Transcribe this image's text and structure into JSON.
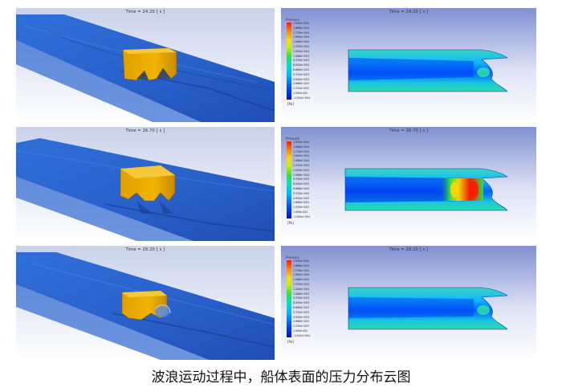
{
  "panels": [
    {
      "row": "1",
      "time_label": "Time = 24.20 [ s ]"
    },
    {
      "row": "2",
      "time_label": "Time = 26.70 [ s ]"
    },
    {
      "row": "3",
      "time_label": "Time = 28.20 [ s ]"
    }
  ],
  "contour": {
    "right_time_labels": [
      "Time = 24.20 [ s ]",
      "Time = 26.70 [ s ]",
      "Time = 28.20 [ s ]"
    ],
    "legend_title": "Pressure",
    "legend_unit": "[Pa]",
    "legend_ticks": [
      "2.000e+004",
      "1.866e+004",
      "1.733e+004",
      "1.600e+004",
      "1.466e+004",
      "1.333e+004",
      "1.200e+004",
      "1.066e+004",
      "9.333e+003",
      "8.000e+003",
      "6.666e+003",
      "5.333e+003",
      "4.000e+003",
      "2.666e+003",
      "1.333e+003",
      "1.000e-002",
      "-1.000e+004"
    ],
    "colors": {
      "high": "#ff1a00",
      "mid": "#30e040",
      "low": "#0010d8",
      "background_top": "#7f8ed0",
      "background_bottom": "#ffffff"
    }
  },
  "caption": "波浪运动过程中，船体表面的压力分布云图"
}
